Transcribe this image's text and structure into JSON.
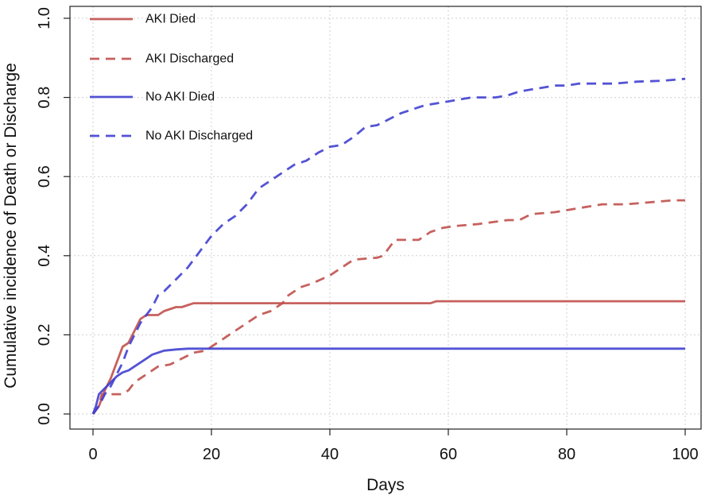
{
  "chart_data": {
    "type": "line",
    "title": "",
    "xlabel": "Days",
    "ylabel": "Cumulative incidence of Death or Discharge",
    "xlim": [
      0,
      100
    ],
    "ylim": [
      0,
      1.0
    ],
    "xticks": [
      0,
      20,
      40,
      60,
      80,
      100
    ],
    "xtick_labels": [
      "0",
      "20",
      "40",
      "60",
      "80",
      "100"
    ],
    "yticks": [
      0,
      0.2,
      0.4,
      0.6,
      0.8,
      1.0
    ],
    "ytick_labels": [
      "0.0",
      "0.2",
      "0.4",
      "0.6",
      "0.8",
      "1.0"
    ],
    "grid": true,
    "legend_position": "top-left",
    "series": [
      {
        "name": "AKI Died",
        "color": "#c0504d",
        "dash": "solid",
        "points": [
          [
            0,
            0
          ],
          [
            0.5,
            0.01
          ],
          [
            1,
            0.02
          ],
          [
            2,
            0.06
          ],
          [
            3,
            0.09
          ],
          [
            4,
            0.13
          ],
          [
            5,
            0.17
          ],
          [
            6,
            0.18
          ],
          [
            7,
            0.21
          ],
          [
            8,
            0.24
          ],
          [
            9,
            0.25
          ],
          [
            10,
            0.25
          ],
          [
            11,
            0.25
          ],
          [
            12,
            0.26
          ],
          [
            13,
            0.265
          ],
          [
            14,
            0.27
          ],
          [
            15,
            0.27
          ],
          [
            16,
            0.275
          ],
          [
            17,
            0.28
          ],
          [
            20,
            0.28
          ],
          [
            30,
            0.28
          ],
          [
            40,
            0.28
          ],
          [
            50,
            0.28
          ],
          [
            57,
            0.28
          ],
          [
            58,
            0.285
          ],
          [
            70,
            0.285
          ],
          [
            80,
            0.285
          ],
          [
            90,
            0.285
          ],
          [
            100,
            0.285
          ]
        ]
      },
      {
        "name": "AKI Discharged",
        "color": "#c0504d",
        "dash": "dashed",
        "points": [
          [
            0,
            0
          ],
          [
            1,
            0.02
          ],
          [
            1.5,
            0.05
          ],
          [
            3,
            0.05
          ],
          [
            5,
            0.05
          ],
          [
            6,
            0.06
          ],
          [
            7,
            0.08
          ],
          [
            8,
            0.09
          ],
          [
            10,
            0.11
          ],
          [
            11,
            0.12
          ],
          [
            13,
            0.125
          ],
          [
            15,
            0.14
          ],
          [
            17,
            0.155
          ],
          [
            19,
            0.16
          ],
          [
            20,
            0.17
          ],
          [
            22,
            0.19
          ],
          [
            24,
            0.21
          ],
          [
            26,
            0.23
          ],
          [
            28,
            0.25
          ],
          [
            30,
            0.26
          ],
          [
            32,
            0.28
          ],
          [
            33,
            0.3
          ],
          [
            35,
            0.32
          ],
          [
            37,
            0.33
          ],
          [
            40,
            0.35
          ],
          [
            42,
            0.37
          ],
          [
            44,
            0.39
          ],
          [
            48,
            0.395
          ],
          [
            49,
            0.4
          ],
          [
            50,
            0.42
          ],
          [
            51,
            0.44
          ],
          [
            55,
            0.44
          ],
          [
            57,
            0.46
          ],
          [
            59,
            0.47
          ],
          [
            61,
            0.475
          ],
          [
            65,
            0.48
          ],
          [
            70,
            0.49
          ],
          [
            72,
            0.49
          ],
          [
            74,
            0.505
          ],
          [
            78,
            0.51
          ],
          [
            82,
            0.52
          ],
          [
            86,
            0.53
          ],
          [
            90,
            0.53
          ],
          [
            94,
            0.535
          ],
          [
            98,
            0.54
          ],
          [
            100,
            0.54
          ]
        ]
      },
      {
        "name": "No AKI Died",
        "color": "#4040d0",
        "dash": "solid",
        "points": [
          [
            0,
            0
          ],
          [
            0.5,
            0.02
          ],
          [
            1,
            0.05
          ],
          [
            2,
            0.065
          ],
          [
            3,
            0.08
          ],
          [
            4,
            0.095
          ],
          [
            5,
            0.105
          ],
          [
            6,
            0.11
          ],
          [
            7,
            0.12
          ],
          [
            8,
            0.13
          ],
          [
            9,
            0.14
          ],
          [
            10,
            0.15
          ],
          [
            11,
            0.155
          ],
          [
            12,
            0.16
          ],
          [
            14,
            0.163
          ],
          [
            16,
            0.165
          ],
          [
            20,
            0.165
          ],
          [
            30,
            0.165
          ],
          [
            50,
            0.165
          ],
          [
            70,
            0.165
          ],
          [
            100,
            0.165
          ]
        ]
      },
      {
        "name": "No AKI Discharged",
        "color": "#4040d0",
        "dash": "dashed",
        "points": [
          [
            0,
            0
          ],
          [
            0.5,
            0.01
          ],
          [
            1,
            0.02
          ],
          [
            2,
            0.05
          ],
          [
            3,
            0.07
          ],
          [
            4,
            0.1
          ],
          [
            5,
            0.13
          ],
          [
            6,
            0.17
          ],
          [
            7,
            0.2
          ],
          [
            8,
            0.23
          ],
          [
            9,
            0.25
          ],
          [
            10,
            0.27
          ],
          [
            11,
            0.3
          ],
          [
            12,
            0.31
          ],
          [
            14,
            0.34
          ],
          [
            16,
            0.37
          ],
          [
            18,
            0.41
          ],
          [
            20,
            0.45
          ],
          [
            22,
            0.48
          ],
          [
            24,
            0.5
          ],
          [
            26,
            0.53
          ],
          [
            28,
            0.57
          ],
          [
            30,
            0.59
          ],
          [
            32,
            0.61
          ],
          [
            34,
            0.63
          ],
          [
            36,
            0.64
          ],
          [
            38,
            0.66
          ],
          [
            40,
            0.675
          ],
          [
            42,
            0.68
          ],
          [
            44,
            0.7
          ],
          [
            46,
            0.725
          ],
          [
            48,
            0.73
          ],
          [
            50,
            0.745
          ],
          [
            52,
            0.76
          ],
          [
            54,
            0.77
          ],
          [
            56,
            0.78
          ],
          [
            58,
            0.785
          ],
          [
            60,
            0.79
          ],
          [
            62,
            0.795
          ],
          [
            64,
            0.8
          ],
          [
            66,
            0.8
          ],
          [
            68,
            0.8
          ],
          [
            70,
            0.805
          ],
          [
            72,
            0.815
          ],
          [
            74,
            0.82
          ],
          [
            76,
            0.825
          ],
          [
            78,
            0.83
          ],
          [
            80,
            0.83
          ],
          [
            82,
            0.835
          ],
          [
            84,
            0.835
          ],
          [
            88,
            0.835
          ],
          [
            92,
            0.84
          ],
          [
            96,
            0.842
          ],
          [
            100,
            0.847
          ]
        ]
      }
    ]
  }
}
